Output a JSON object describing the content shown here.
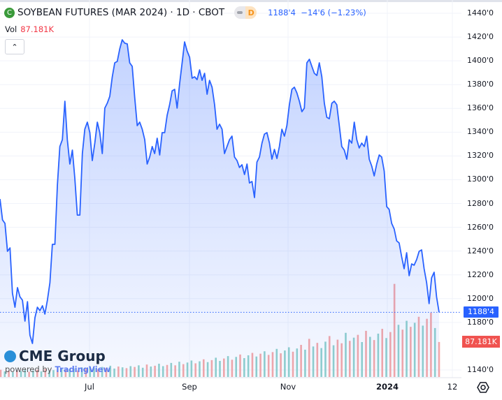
{
  "header": {
    "symbol_title": "SOYBEAN FUTURES (MAR 2024) · 1D · CBOT",
    "logo_letter": "C",
    "status_letter": "D",
    "last_price": "1188'4",
    "change": "−14'6",
    "change_pct": "(−1.23%)",
    "vol_label": "Vol",
    "vol_value": "87.181K",
    "collapse_glyph": "⌃"
  },
  "branding": {
    "cme": "CME Group",
    "powered_by": "powered by",
    "tradingview": "TradingView"
  },
  "price_axis": {
    "ticks": [
      "1440'0",
      "1420'0",
      "1400'0",
      "1380'0",
      "1360'0",
      "1340'0",
      "1320'0",
      "1300'0",
      "1280'0",
      "1260'0",
      "1240'0",
      "1220'0",
      "1200'0",
      "1180'0",
      "1140'0"
    ],
    "current_price_tag": "1188'4",
    "volume_tag": "87.181K"
  },
  "time_axis": {
    "ticks": [
      "Jul",
      "Sep",
      "Nov",
      "2024",
      "12"
    ]
  },
  "colors": {
    "line": "#2962ff",
    "up_volume": "#92d2cc",
    "down_volume": "#f7a9a7",
    "price_tag": "#2962ff",
    "volume_tag": "#f05350"
  },
  "chart_data": {
    "type": "area",
    "title": "SOYBEAN FUTURES (MAR 2024) · 1D · CBOT",
    "ylim": [
      1140,
      1440
    ],
    "x_range": [
      "late May 2023",
      "mid Jan 2024"
    ],
    "close": [
      1283.8,
      1266.2,
      1263.3,
      1239.8,
      1242.7,
      1204.6,
      1192.8,
      1209.3,
      1201.6,
      1198.7,
      1181.1,
      1197.5,
      1169.3,
      1162.3,
      1184,
      1192.8,
      1189.9,
      1194,
      1187,
      1198.7,
      1213.4,
      1245.7,
      1245.7,
      1295.6,
      1327.9,
      1333.7,
      1366,
      1333.7,
      1313.2,
      1324.9,
      1301.4,
      1270.3,
      1270.3,
      1322,
      1342.5,
      1348.4,
      1339.6,
      1316.1,
      1330.8,
      1348.4,
      1339.6,
      1322,
      1360.2,
      1364.3,
      1370.1,
      1386.6,
      1398.3,
      1399.5,
      1410.1,
      1417.7,
      1414.8,
      1414.2,
      1398.3,
      1395.4,
      1369,
      1345.5,
      1348.4,
      1342.5,
      1333.7,
      1313.2,
      1319.1,
      1327.9,
      1322,
      1334.9,
      1320.8,
      1339.6,
      1339.6,
      1354.3,
      1363.1,
      1374.8,
      1376,
      1360.2,
      1380.7,
      1398.3,
      1415.9,
      1408.3,
      1403,
      1385.4,
      1386.6,
      1384.2,
      1392.4,
      1383.6,
      1389.5,
      1371.9,
      1383.6,
      1377.8,
      1363.1,
      1342.5,
      1346.7,
      1342.5,
      1322,
      1327.9,
      1333.7,
      1336.7,
      1319.1,
      1316.1,
      1310.3,
      1312.6,
      1304.4,
      1313.2,
      1297.3,
      1298.5,
      1285,
      1314.9,
      1319.1,
      1330.8,
      1338.4,
      1339.6,
      1330.8,
      1317.3,
      1325.5,
      1317.9,
      1327.9,
      1342.5,
      1336.7,
      1345.5,
      1363.1,
      1376,
      1377.8,
      1373.1,
      1366,
      1357.2,
      1360.2,
      1398.3,
      1401.3,
      1395.4,
      1389.5,
      1387.7,
      1398.3,
      1386.6,
      1364.3,
      1352.5,
      1351.3,
      1364.3,
      1366,
      1363.1,
      1345.5,
      1327.9,
      1324.9,
      1317.3,
      1333.7,
      1330.8,
      1348.4,
      1333.7,
      1326.7,
      1330.8,
      1327.9,
      1336.7,
      1317.3,
      1311.4,
      1303.2,
      1313.2,
      1320.8,
      1319.1,
      1307.3,
      1277.4,
      1275,
      1263.3,
      1258.6,
      1248.6,
      1246.8,
      1235.1,
      1225.1,
      1238.6,
      1219.3,
      1229.2,
      1228.1,
      1232.8,
      1239.8,
      1241,
      1225.1,
      1213.4,
      1195.8,
      1217.5,
      1222.2,
      1201.6,
      1188.5
    ],
    "volume_k": [
      18,
      14,
      16,
      12,
      17,
      15,
      19,
      13,
      16,
      18,
      14,
      20,
      15,
      17,
      16,
      22,
      18,
      19,
      21,
      16,
      24,
      20,
      26,
      22,
      19,
      25,
      23,
      28,
      21,
      26,
      24,
      22,
      27,
      25,
      29,
      23,
      31,
      26,
      28,
      33,
      27,
      30,
      35,
      29,
      38,
      32,
      36,
      41,
      34,
      39,
      44,
      37,
      42,
      48,
      40,
      46,
      52,
      43,
      50,
      56,
      47,
      54,
      60,
      51,
      58,
      64,
      55,
      62,
      70,
      59,
      66,
      74,
      63,
      71,
      80,
      68,
      95,
      76,
      85,
      72,
      88,
      102,
      79,
      93,
      84,
      110,
      90,
      98,
      105,
      87,
      115,
      100,
      92,
      108,
      120,
      97,
      112,
      232,
      130,
      118,
      140,
      125,
      135,
      150,
      128,
      145,
      160,
      122,
      87.181
    ],
    "volume_dir": [
      "d",
      "u",
      "d",
      "u",
      "d",
      "u",
      "u",
      "d",
      "u",
      "d",
      "u",
      "d",
      "u",
      "u",
      "d",
      "u",
      "d",
      "u",
      "u",
      "d",
      "u",
      "d",
      "u",
      "u",
      "d",
      "u",
      "d",
      "u",
      "u",
      "d",
      "u",
      "d",
      "u",
      "d",
      "u",
      "u",
      "d",
      "u",
      "d",
      "u",
      "u",
      "d",
      "u",
      "d",
      "u",
      "d",
      "u",
      "u",
      "d",
      "u",
      "d",
      "u",
      "d",
      "u",
      "u",
      "d",
      "u",
      "d",
      "u",
      "d",
      "u",
      "u",
      "d",
      "u",
      "d",
      "u",
      "d",
      "d",
      "u",
      "d",
      "u",
      "u",
      "d",
      "u",
      "d",
      "u",
      "d",
      "u",
      "d",
      "u",
      "u",
      "d",
      "u",
      "d",
      "d",
      "u",
      "d",
      "u",
      "d",
      "u",
      "d",
      "u",
      "d",
      "u",
      "d",
      "u",
      "d",
      "d",
      "u",
      "d",
      "u",
      "d",
      "u",
      "d",
      "u",
      "d",
      "d",
      "u",
      "d"
    ]
  }
}
